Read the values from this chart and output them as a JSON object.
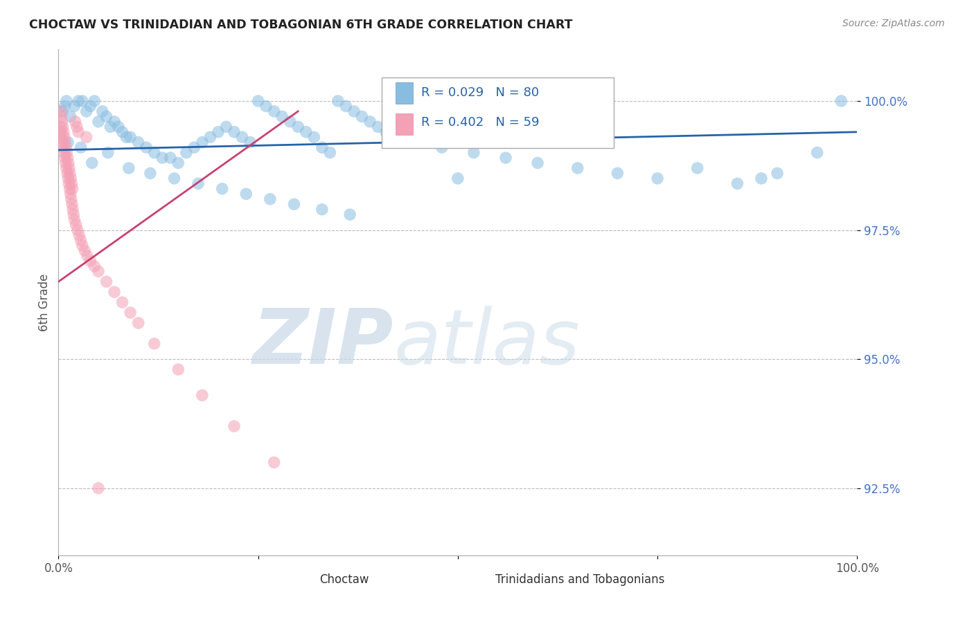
{
  "title": "CHOCTAW VS TRINIDADIAN AND TOBAGONIAN 6TH GRADE CORRELATION CHART",
  "source": "Source: ZipAtlas.com",
  "ylabel": "6th Grade",
  "xlim": [
    0.0,
    100.0
  ],
  "ylim": [
    91.2,
    101.0
  ],
  "yticks": [
    92.5,
    95.0,
    97.5,
    100.0
  ],
  "ytick_labels": [
    "92.5%",
    "95.0%",
    "97.5%",
    "100.0%"
  ],
  "blue_color": "#89bde0",
  "pink_color": "#f4a0b5",
  "trend_blue": "#2563a8",
  "trend_pink": "#c94070",
  "blue_scatter_x": [
    0.5,
    0.8,
    1.0,
    1.5,
    2.0,
    2.5,
    3.0,
    3.5,
    4.0,
    4.5,
    5.0,
    5.5,
    6.0,
    6.5,
    7.0,
    7.5,
    8.0,
    8.5,
    9.0,
    10.0,
    11.0,
    12.0,
    13.0,
    14.0,
    15.0,
    16.0,
    17.0,
    18.0,
    19.0,
    20.0,
    21.0,
    22.0,
    23.0,
    24.0,
    25.0,
    26.0,
    27.0,
    28.0,
    29.0,
    30.0,
    31.0,
    32.0,
    33.0,
    34.0,
    35.0,
    36.0,
    37.0,
    38.0,
    39.0,
    40.0,
    41.0,
    42.0,
    45.0,
    48.0,
    52.0,
    56.0,
    60.0,
    65.0,
    70.0,
    75.0,
    80.0,
    85.0,
    88.0,
    90.0,
    95.0,
    98.0,
    1.2,
    2.8,
    4.2,
    6.2,
    8.8,
    11.5,
    14.5,
    17.5,
    20.5,
    23.5,
    26.5,
    29.5,
    33.0,
    36.5,
    50.0
  ],
  "blue_scatter_y": [
    99.8,
    99.9,
    100.0,
    99.7,
    99.9,
    100.0,
    100.0,
    99.8,
    99.9,
    100.0,
    99.6,
    99.8,
    99.7,
    99.5,
    99.6,
    99.5,
    99.4,
    99.3,
    99.3,
    99.2,
    99.1,
    99.0,
    98.9,
    98.9,
    98.8,
    99.0,
    99.1,
    99.2,
    99.3,
    99.4,
    99.5,
    99.4,
    99.3,
    99.2,
    100.0,
    99.9,
    99.8,
    99.7,
    99.6,
    99.5,
    99.4,
    99.3,
    99.1,
    99.0,
    100.0,
    99.9,
    99.8,
    99.7,
    99.6,
    99.5,
    99.4,
    99.3,
    99.2,
    99.1,
    99.0,
    98.9,
    98.8,
    98.7,
    98.6,
    98.5,
    98.7,
    98.4,
    98.5,
    98.6,
    99.0,
    100.0,
    99.2,
    99.1,
    98.8,
    99.0,
    98.7,
    98.6,
    98.5,
    98.4,
    98.3,
    98.2,
    98.1,
    98.0,
    97.9,
    97.8,
    98.5
  ],
  "pink_scatter_x": [
    0.2,
    0.3,
    0.4,
    0.5,
    0.6,
    0.7,
    0.8,
    0.9,
    1.0,
    1.1,
    1.2,
    1.3,
    1.4,
    1.5,
    1.6,
    1.7,
    1.8,
    1.9,
    2.0,
    2.2,
    2.4,
    2.6,
    2.8,
    3.0,
    3.3,
    3.6,
    4.0,
    4.5,
    5.0,
    6.0,
    7.0,
    8.0,
    9.0,
    10.0,
    12.0,
    15.0,
    18.0,
    22.0,
    27.0,
    0.25,
    0.35,
    0.45,
    0.55,
    0.65,
    0.75,
    0.85,
    0.95,
    1.05,
    1.15,
    1.25,
    1.35,
    1.45,
    1.55,
    1.65,
    1.75,
    2.1,
    2.3,
    2.5,
    3.5,
    5.0
  ],
  "pink_scatter_y": [
    99.5,
    99.4,
    99.3,
    99.2,
    99.1,
    99.0,
    98.9,
    98.8,
    98.7,
    98.6,
    98.5,
    98.4,
    98.3,
    98.2,
    98.1,
    98.0,
    97.9,
    97.8,
    97.7,
    97.6,
    97.5,
    97.4,
    97.3,
    97.2,
    97.1,
    97.0,
    96.9,
    96.8,
    96.7,
    96.5,
    96.3,
    96.1,
    95.9,
    95.7,
    95.3,
    94.8,
    94.3,
    93.7,
    93.0,
    99.8,
    99.7,
    99.6,
    99.5,
    99.4,
    99.3,
    99.2,
    99.1,
    99.0,
    98.9,
    98.8,
    98.7,
    98.6,
    98.5,
    98.4,
    98.3,
    99.6,
    99.5,
    99.4,
    99.3,
    92.5
  ],
  "blue_trend_x": [
    0.0,
    100.0
  ],
  "blue_trend_y": [
    99.05,
    99.4
  ],
  "pink_trend_x": [
    0.0,
    30.0
  ],
  "pink_trend_y": [
    96.5,
    99.8
  ]
}
